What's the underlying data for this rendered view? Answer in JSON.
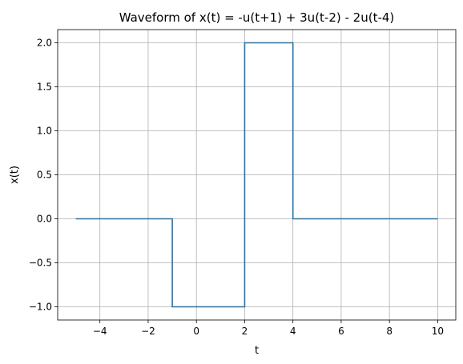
{
  "chart_data": {
    "type": "line",
    "title": "Waveform of x(t) = -u(t+1) + 3u(t-2) - 2u(t-4)",
    "xlabel": "t",
    "ylabel": "x(t)",
    "xlim": [
      -5.75,
      10.75
    ],
    "ylim": [
      -1.15,
      2.15
    ],
    "xticks": [
      -4,
      -2,
      0,
      2,
      4,
      6,
      8,
      10
    ],
    "xtick_labels": [
      "−4",
      "−2",
      "0",
      "2",
      "4",
      "6",
      "8",
      "10"
    ],
    "yticks": [
      -1.0,
      -0.5,
      0.0,
      0.5,
      1.0,
      1.5,
      2.0
    ],
    "ytick_labels": [
      "−1.0",
      "−0.5",
      "0.0",
      "0.5",
      "1.0",
      "1.5",
      "2.0"
    ],
    "grid": true,
    "series": [
      {
        "color": "#1f77b4",
        "x": [
          -5,
          -1,
          -1,
          2,
          2,
          4,
          4,
          10
        ],
        "y": [
          0,
          0,
          -1,
          -1,
          2,
          2,
          0,
          0
        ]
      }
    ]
  }
}
